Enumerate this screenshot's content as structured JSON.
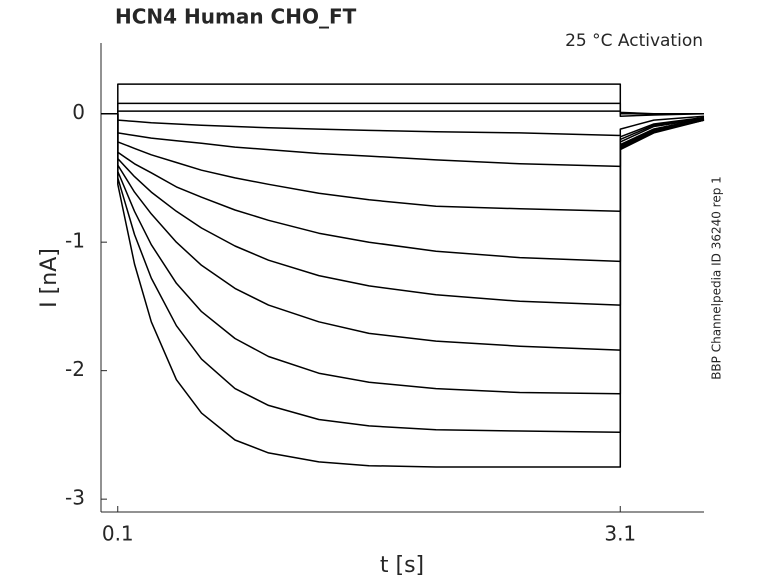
{
  "chart_data": {
    "type": "line",
    "title": "HCN4  Human  CHO_FT",
    "annotation": "25 °C  Activation",
    "side_note": "BBP Channelpedia ID 36240 rep 1",
    "x_label": "t [s]",
    "y_label": "I [nA]",
    "xlim": [
      0,
      3.6
    ],
    "ylim": [
      -3.1,
      0.55
    ],
    "xticks": [
      0.1,
      3.1
    ],
    "yticks": [
      -3,
      -2,
      -1,
      0
    ],
    "x": [
      0,
      0.1,
      0.1,
      0.2,
      0.3,
      0.45,
      0.6,
      0.8,
      1.0,
      1.3,
      1.6,
      2.0,
      2.5,
      3.1,
      3.1,
      3.3,
      3.6
    ],
    "series": [
      {
        "color": "#000000",
        "values": [
          0,
          0,
          -0.55,
          -1.17,
          -1.62,
          -2.07,
          -2.33,
          -2.54,
          -2.64,
          -2.71,
          -2.74,
          -2.75,
          -2.75,
          -2.75,
          -0.28,
          -0.15,
          -0.05
        ]
      },
      {
        "color": "#000000",
        "values": [
          0,
          0,
          -0.5,
          -0.94,
          -1.28,
          -1.65,
          -1.91,
          -2.14,
          -2.27,
          -2.38,
          -2.43,
          -2.46,
          -2.47,
          -2.48,
          -0.27,
          -0.14,
          -0.05
        ]
      },
      {
        "color": "#000000",
        "values": [
          0,
          0,
          -0.45,
          -0.76,
          -1.02,
          -1.32,
          -1.54,
          -1.75,
          -1.89,
          -2.02,
          -2.09,
          -2.14,
          -2.17,
          -2.18,
          -0.26,
          -0.13,
          -0.05
        ]
      },
      {
        "color": "#000000",
        "values": [
          0,
          0,
          -0.4,
          -0.61,
          -0.78,
          -1.0,
          -1.18,
          -1.36,
          -1.49,
          -1.62,
          -1.71,
          -1.77,
          -1.81,
          -1.84,
          -0.25,
          -0.12,
          -0.04
        ]
      },
      {
        "color": "#000000",
        "values": [
          0,
          0,
          -0.35,
          -0.49,
          -0.61,
          -0.76,
          -0.89,
          -1.03,
          -1.14,
          -1.26,
          -1.34,
          -1.41,
          -1.46,
          -1.49,
          -0.24,
          -0.12,
          -0.04
        ]
      },
      {
        "color": "#000000",
        "values": [
          0,
          0,
          -0.3,
          -0.39,
          -0.46,
          -0.57,
          -0.65,
          -0.75,
          -0.83,
          -0.93,
          -1.0,
          -1.07,
          -1.12,
          -1.15,
          -0.22,
          -0.1,
          -0.04
        ]
      },
      {
        "color": "#000000",
        "values": [
          0,
          0,
          -0.22,
          -0.27,
          -0.32,
          -0.38,
          -0.44,
          -0.5,
          -0.55,
          -0.62,
          -0.67,
          -0.72,
          -0.74,
          -0.76,
          -0.2,
          -0.09,
          -0.03
        ]
      },
      {
        "color": "#000000",
        "values": [
          0,
          0,
          -0.15,
          -0.17,
          -0.19,
          -0.21,
          -0.23,
          -0.26,
          -0.28,
          -0.31,
          -0.33,
          -0.36,
          -0.39,
          -0.41,
          -0.18,
          -0.08,
          -0.03
        ]
      },
      {
        "color": "#000000",
        "values": [
          0,
          0,
          -0.05,
          -0.06,
          -0.07,
          -0.08,
          -0.09,
          -0.1,
          -0.11,
          -0.12,
          -0.13,
          -0.14,
          -0.15,
          -0.17,
          -0.12,
          -0.05,
          -0.02
        ]
      },
      {
        "color": "#000000",
        "values": [
          0,
          0,
          0.02,
          0.02,
          0.02,
          0.02,
          0.02,
          0.02,
          0.02,
          0.02,
          0.02,
          0.02,
          0.02,
          0.02,
          -0.02,
          -0.01,
          0
        ]
      },
      {
        "color": "#000000",
        "values": [
          0,
          0,
          0.08,
          0.08,
          0.08,
          0.08,
          0.08,
          0.08,
          0.08,
          0.08,
          0.08,
          0.08,
          0.08,
          0.08,
          0,
          0,
          0
        ]
      },
      {
        "color": "#000000",
        "values": [
          0,
          0,
          0.23,
          0.23,
          0.23,
          0.23,
          0.23,
          0.23,
          0.23,
          0.23,
          0.23,
          0.23,
          0.23,
          0.23,
          0.01,
          0,
          0
        ]
      }
    ]
  }
}
